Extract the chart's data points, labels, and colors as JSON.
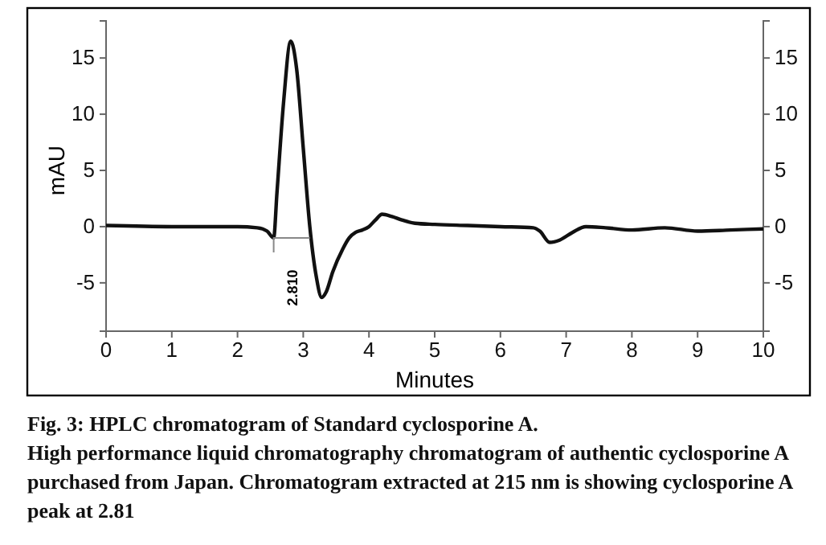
{
  "chart_data": {
    "type": "line",
    "title": "Fig. 3: HPLC chromatogram of Standard cyclosporine A.",
    "xlabel": "Minutes",
    "ylabel": "mAU",
    "xlim": [
      0,
      10
    ],
    "xticks": [
      0,
      1,
      2,
      3,
      4,
      5,
      6,
      7,
      8,
      9,
      10
    ],
    "ylim": [
      -9.3,
      18.3
    ],
    "yticks": [
      -5,
      0,
      5,
      10,
      15
    ],
    "y2lim": [
      -9.3,
      18.3
    ],
    "y2ticks": [
      -5,
      0,
      5,
      10,
      15
    ],
    "grid": false,
    "marker": "none",
    "line_style": "solid",
    "series": [
      {
        "color": "#111111",
        "x": [
          0,
          1,
          2,
          2.3,
          2.45,
          2.55,
          2.6,
          2.7,
          2.81,
          2.9,
          3.0,
          3.1,
          3.2,
          3.28,
          3.35,
          3.45,
          3.6,
          3.7,
          3.8,
          3.9,
          4.0,
          4.1,
          4.2,
          4.35,
          4.5,
          4.7,
          5,
          5.5,
          6,
          6.5,
          6.6,
          6.75,
          6.9,
          7.1,
          7.3,
          7.6,
          8,
          8.5,
          9,
          9.5,
          10
        ],
        "values": [
          0.1,
          0,
          0,
          -0.1,
          -0.4,
          -1,
          3,
          11,
          16.5,
          14,
          7,
          0,
          -4.5,
          -6.3,
          -5.8,
          -4,
          -2,
          -1,
          -0.5,
          -0.3,
          0,
          0.6,
          1.1,
          0.9,
          0.6,
          0.3,
          0.2,
          0.1,
          0,
          -0.1,
          -0.4,
          -1.4,
          -1.2,
          -0.5,
          0,
          -0.1,
          -0.3,
          -0.1,
          -0.4,
          -0.3,
          -0.2
        ]
      },
      {
        "color": "#888888",
        "x": [
          2.55,
          2.55,
          3.1
        ],
        "values": [
          -2.3,
          -1,
          -1
        ]
      }
    ],
    "annotations": [
      "2.810",
      "High performance liquid chromatography chromatogram of authentic cyclosporine A purchased from Japan. Chromatogram extracted at 215 nm is showing cyclosporine A peak at 2.81"
    ]
  }
}
